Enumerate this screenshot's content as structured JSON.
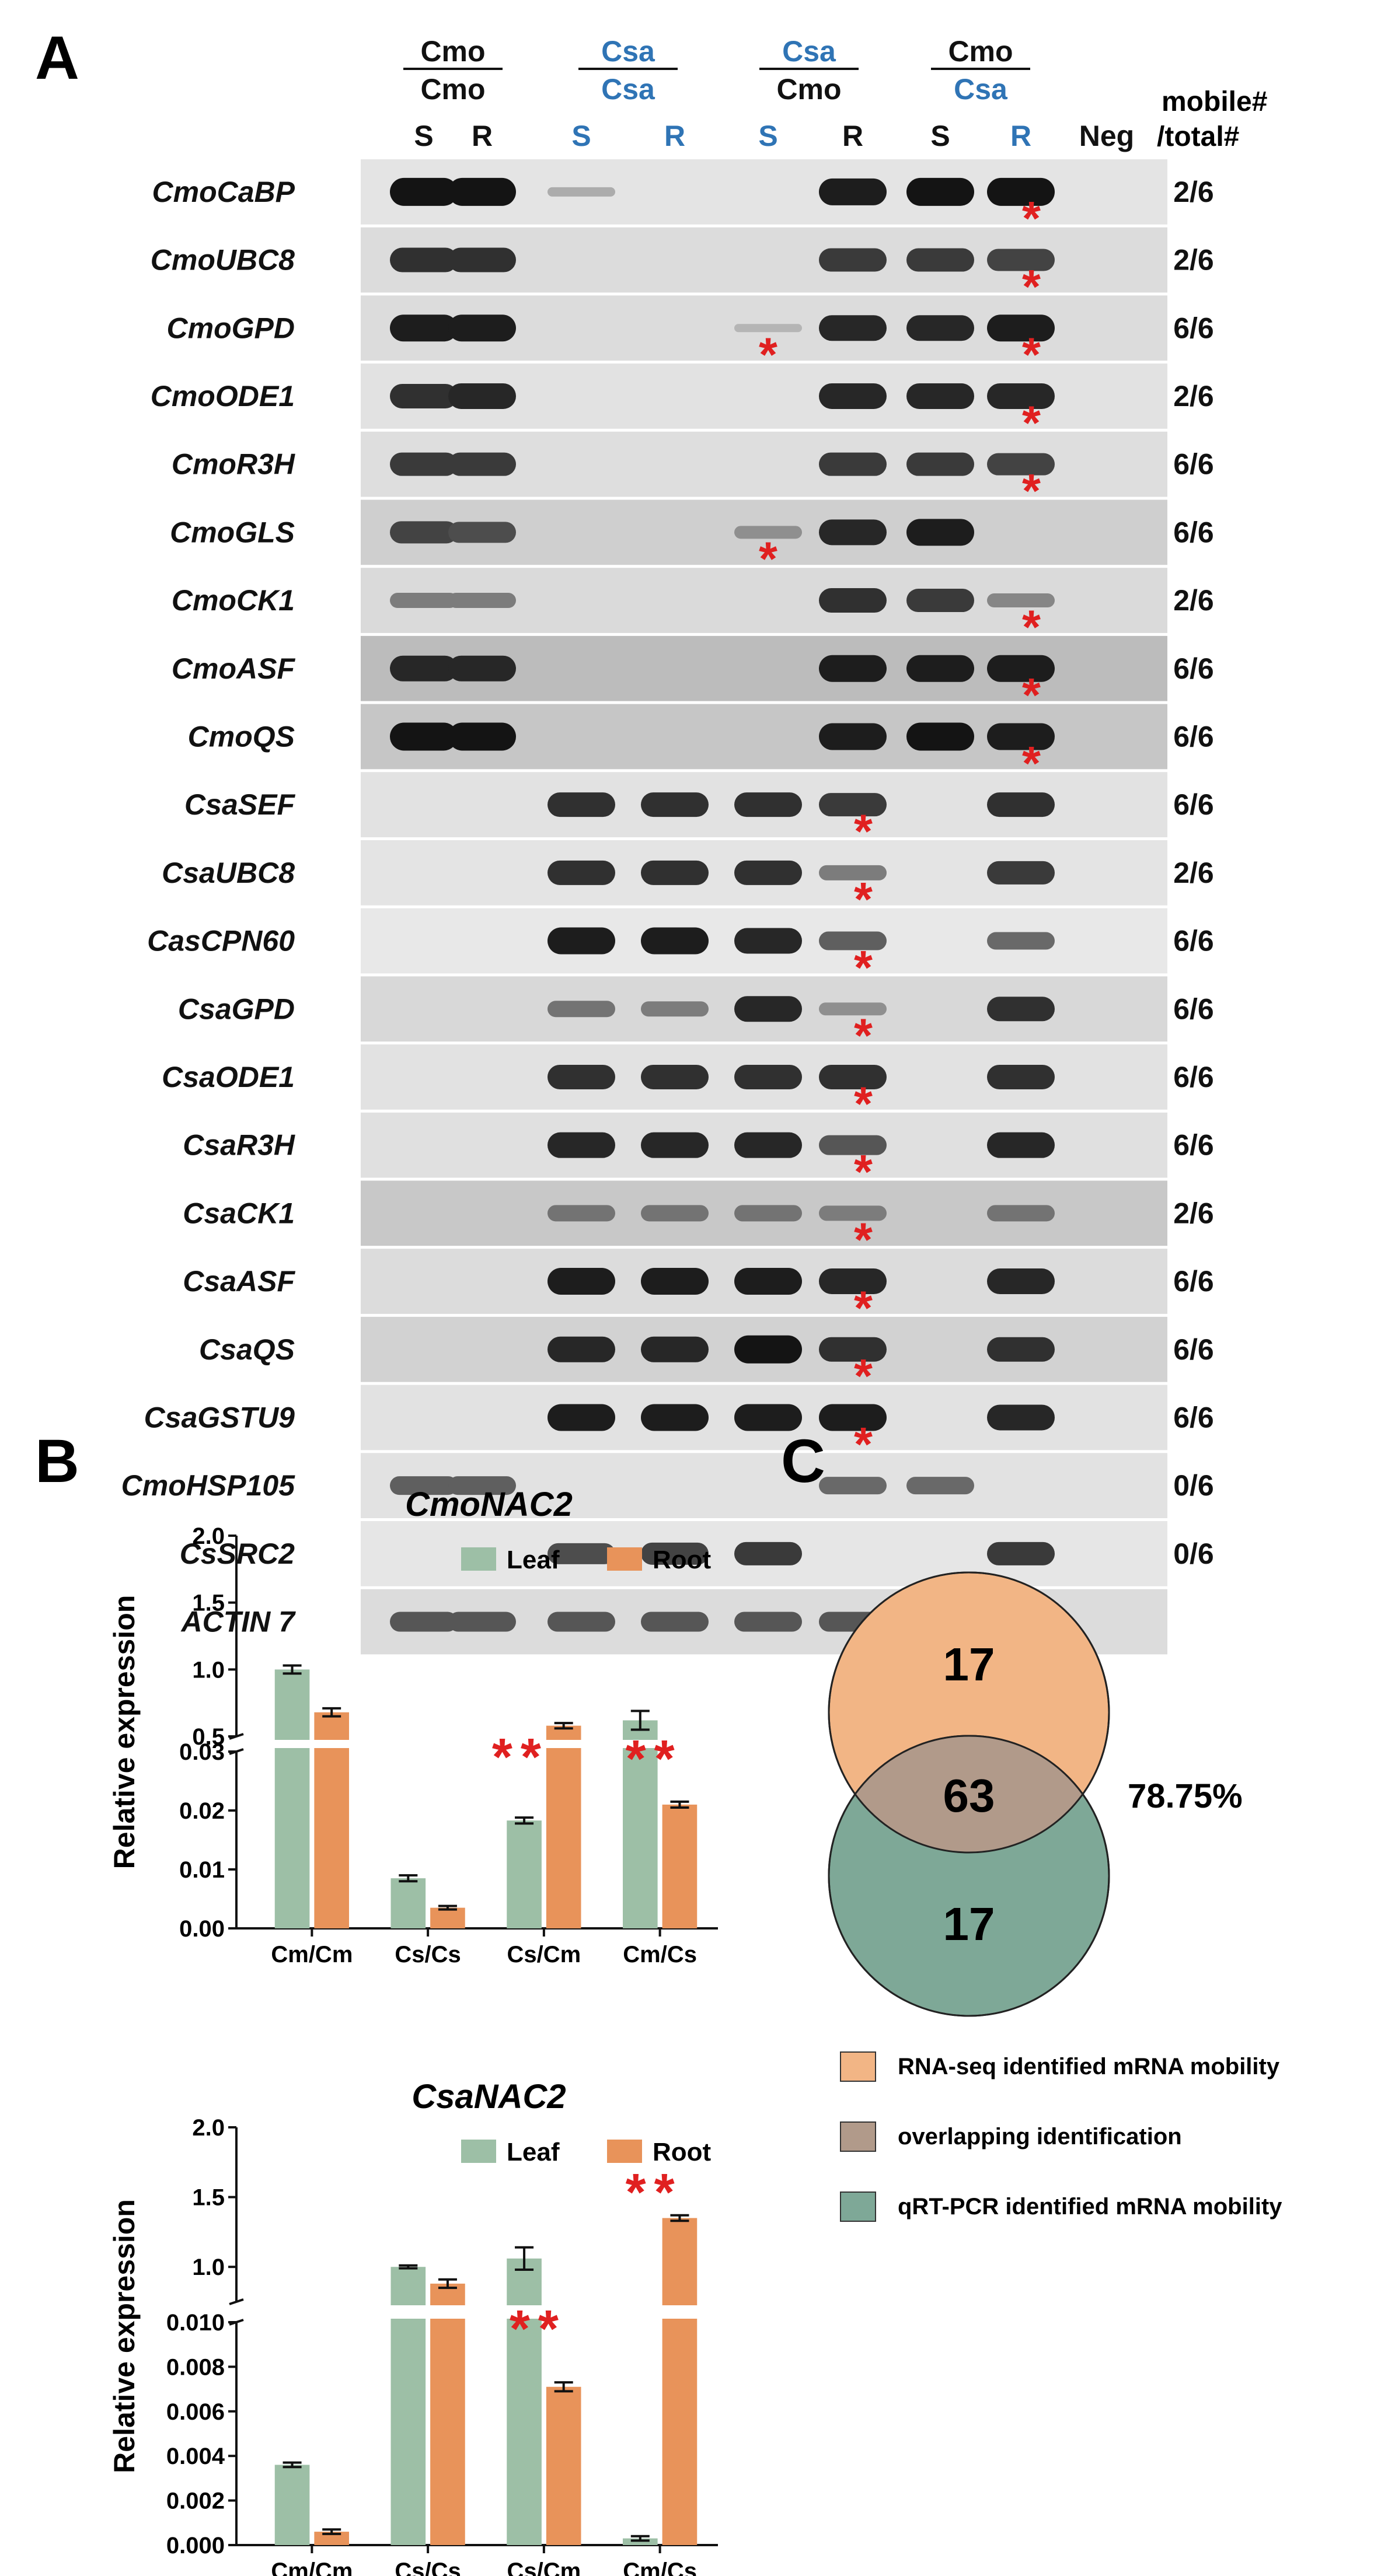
{
  "panel_a": {
    "label": "A",
    "groups": [
      {
        "top": "Cmo",
        "bottom": "Cmo",
        "top_color": "#111111",
        "bottom_color": "#111111"
      },
      {
        "top": "Csa",
        "bottom": "Csa",
        "top_color": "#2f74b5",
        "bottom_color": "#2f74b5"
      },
      {
        "top": "Csa",
        "bottom": "Cmo",
        "top_color": "#2f74b5",
        "bottom_color": "#111111"
      },
      {
        "top": "Cmo",
        "bottom": "Csa",
        "top_color": "#111111",
        "bottom_color": "#2f74b5"
      }
    ],
    "lanes": [
      {
        "label": "S",
        "color": "#111111"
      },
      {
        "label": "R",
        "color": "#111111"
      },
      {
        "label": "S",
        "color": "#2f74b5"
      },
      {
        "label": "R",
        "color": "#2f74b5"
      },
      {
        "label": "S",
        "color": "#2f74b5"
      },
      {
        "label": "R",
        "color": "#111111"
      },
      {
        "label": "S",
        "color": "#111111"
      },
      {
        "label": "R",
        "color": "#2f74b5"
      },
      {
        "label": "Neg",
        "color": "#111111"
      }
    ],
    "mobile_header_1": "mobile#",
    "mobile_header_2": "/total#",
    "genes": [
      {
        "name": "CmoCaBP",
        "ratio": "2/6",
        "bg": "#e4e4e4",
        "bands": [
          0.95,
          0.95,
          0.15,
          0,
          0,
          0.9,
          0.95,
          0.95,
          0
        ],
        "star_lanes": [
          7
        ]
      },
      {
        "name": "CmoUBC8",
        "ratio": "2/6",
        "bg": "#dcdcdc",
        "bands": [
          0.8,
          0.8,
          0,
          0,
          0,
          0.75,
          0.75,
          0.7,
          0
        ],
        "star_lanes": [
          7
        ]
      },
      {
        "name": "CmoGPD",
        "ratio": "6/6",
        "bg": "#dcdcdc",
        "bands": [
          0.9,
          0.9,
          0,
          0,
          0.1,
          0.85,
          0.85,
          0.9,
          0
        ],
        "star_lanes": [
          4,
          7
        ]
      },
      {
        "name": "CmoODE1",
        "ratio": "2/6",
        "bg": "#e2e2e2",
        "bands": [
          0.8,
          0.85,
          0,
          0,
          0,
          0.85,
          0.85,
          0.85,
          0
        ],
        "star_lanes": [
          7
        ]
      },
      {
        "name": "CmoR3H",
        "ratio": "6/6",
        "bg": "#dedede",
        "bands": [
          0.75,
          0.75,
          0,
          0,
          0,
          0.75,
          0.75,
          0.7,
          0
        ],
        "star_lanes": [
          7
        ]
      },
      {
        "name": "CmoGLS",
        "ratio": "6/6",
        "bg": "#cfcfcf",
        "bands": [
          0.7,
          0.65,
          0,
          0,
          0.3,
          0.85,
          0.9,
          0,
          0
        ],
        "star_lanes": [
          4
        ]
      },
      {
        "name": "CmoCK1",
        "ratio": "2/6",
        "bg": "#dadada",
        "bands": [
          0.4,
          0.4,
          0,
          0,
          0,
          0.8,
          0.75,
          0.35,
          0
        ],
        "star_lanes": [
          7
        ]
      },
      {
        "name": "CmoASF",
        "ratio": "6/6",
        "bg": "#bcbcbc",
        "bands": [
          0.85,
          0.85,
          0,
          0,
          0,
          0.9,
          0.9,
          0.9,
          0
        ],
        "star_lanes": [
          7
        ]
      },
      {
        "name": "CmoQS",
        "ratio": "6/6",
        "bg": "#c6c6c6",
        "bands": [
          0.95,
          0.95,
          0,
          0,
          0,
          0.9,
          0.95,
          0.9,
          0
        ],
        "star_lanes": [
          7
        ]
      },
      {
        "name": "CsaSEF",
        "ratio": "6/6",
        "bg": "#e2e2e2",
        "bands": [
          0,
          0,
          0.8,
          0.8,
          0.8,
          0.75,
          0,
          0.8,
          0
        ],
        "star_lanes": [
          5
        ]
      },
      {
        "name": "CsaUBC8",
        "ratio": "2/6",
        "bg": "#e4e4e4",
        "bands": [
          0,
          0,
          0.8,
          0.8,
          0.8,
          0.4,
          0,
          0.75,
          0
        ],
        "star_lanes": [
          5
        ]
      },
      {
        "name": "CasCPN60",
        "ratio": "6/6",
        "bg": "#e8e8e8",
        "bands": [
          0,
          0,
          0.9,
          0.9,
          0.85,
          0.55,
          0,
          0.5,
          0
        ],
        "star_lanes": [
          5
        ]
      },
      {
        "name": "CsaGPD",
        "ratio": "6/6",
        "bg": "#d8d8d8",
        "bands": [
          0,
          0,
          0.45,
          0.4,
          0.85,
          0.3,
          0,
          0.8,
          0
        ],
        "star_lanes": [
          5
        ]
      },
      {
        "name": "CsaODE1",
        "ratio": "6/6",
        "bg": "#e2e2e2",
        "bands": [
          0,
          0,
          0.8,
          0.8,
          0.8,
          0.8,
          0,
          0.8,
          0
        ],
        "star_lanes": [
          5
        ]
      },
      {
        "name": "CsaR3H",
        "ratio": "6/6",
        "bg": "#e0e0e0",
        "bands": [
          0,
          0,
          0.85,
          0.85,
          0.85,
          0.6,
          0,
          0.85,
          0
        ],
        "star_lanes": [
          5
        ]
      },
      {
        "name": "CsaCK1",
        "ratio": "2/6",
        "bg": "#c8c8c8",
        "bands": [
          0,
          0,
          0.45,
          0.45,
          0.45,
          0.4,
          0,
          0.45,
          0
        ],
        "star_lanes": [
          5
        ]
      },
      {
        "name": "CsaASF",
        "ratio": "6/6",
        "bg": "#dcdcdc",
        "bands": [
          0,
          0,
          0.9,
          0.9,
          0.9,
          0.85,
          0,
          0.85,
          0
        ],
        "star_lanes": [
          5
        ]
      },
      {
        "name": "CsaQS",
        "ratio": "6/6",
        "bg": "#d2d2d2",
        "bands": [
          0,
          0,
          0.85,
          0.85,
          0.95,
          0.8,
          0,
          0.8,
          0
        ],
        "star_lanes": [
          5
        ]
      },
      {
        "name": "CsaGSTU9",
        "ratio": "6/6",
        "bg": "#e2e2e2",
        "bands": [
          0,
          0,
          0.9,
          0.9,
          0.9,
          0.9,
          0,
          0.85,
          0
        ],
        "star_lanes": [
          5
        ]
      },
      {
        "name": "CmoHSP105",
        "ratio": "0/6",
        "bg": "#e2e2e2",
        "bands": [
          0.55,
          0.55,
          0,
          0,
          0,
          0.5,
          0.5,
          0,
          0
        ],
        "star_lanes": []
      },
      {
        "name": "CsSRC2",
        "ratio": "0/6",
        "bg": "#e6e6e6",
        "bands": [
          0,
          0,
          0.65,
          0.7,
          0.75,
          0,
          0,
          0.75,
          0
        ],
        "star_lanes": []
      },
      {
        "name": "ACTIN 7",
        "ratio": "",
        "bg": "#dcdcdc",
        "bands": [
          0.6,
          0.6,
          0.6,
          0.6,
          0.6,
          0.6,
          0.55,
          0.6,
          0
        ],
        "star_lanes": []
      }
    ]
  },
  "panel_b": {
    "label": "B",
    "legend_leaf": "Leaf",
    "legend_root": "Root",
    "leaf_color": "#9dbfa6",
    "root_color": "#e8935a",
    "star_color": "#e02020",
    "star_text": "*"
  },
  "panel_c": {
    "label": "C",
    "left_only": "17",
    "overlap": "63",
    "right_only": "17",
    "percent": "78.75%",
    "colors": {
      "rnaseq": "#f2b585",
      "overlap": "#b19a8a",
      "qrt": "#7ea897"
    },
    "legend": [
      {
        "text": "RNA-seq identified mRNA mobility",
        "color": "#f2b585"
      },
      {
        "text": "overlapping identification",
        "color": "#b19a8a"
      },
      {
        "text": "qRT-PCR identified mRNA mobility",
        "color": "#7ea897"
      }
    ]
  },
  "chart_data": [
    {
      "type": "bar",
      "title": "CmoNAC2",
      "xlabel": "",
      "ylabel": "Relative expression",
      "categories": [
        "Cm/Cm",
        "Cs/Cs",
        "Cs/Cm",
        "Cm/Cs"
      ],
      "series": [
        {
          "name": "Leaf",
          "values": [
            1.0,
            0.0085,
            0.0183,
            0.62
          ],
          "errors": [
            0.03,
            0.0005,
            0.0005,
            0.07
          ]
        },
        {
          "name": "Root",
          "values": [
            0.68,
            0.0035,
            0.58,
            0.021
          ],
          "errors": [
            0.03,
            0.0003,
            0.02,
            0.0005
          ]
        }
      ],
      "axis_break": {
        "lower": [
          0,
          0.03
        ],
        "upper": [
          0.5,
          2.0
        ]
      },
      "lower_ticks": [
        "0.00",
        "0.01",
        "0.02",
        "0.03"
      ],
      "upper_ticks": [
        "0.5",
        "1.0",
        "1.5",
        "2.0"
      ],
      "significance": [
        {
          "category": "Cs/Cm",
          "label": "**"
        },
        {
          "category": "Cm/Cs",
          "label": "**"
        }
      ],
      "legend": "top-right"
    },
    {
      "type": "bar",
      "title": "CsaNAC2",
      "xlabel": "",
      "ylabel": "Relative expression",
      "categories": [
        "Cm/Cm",
        "Cs/Cs",
        "Cs/Cm",
        "Cm/Cs"
      ],
      "series": [
        {
          "name": "Leaf",
          "values": [
            0.0036,
            1.0,
            1.06,
            0.0003
          ],
          "errors": [
            0.0001,
            0.01,
            0.08,
            0.0001
          ]
        },
        {
          "name": "Root",
          "values": [
            0.0006,
            0.88,
            0.0071,
            1.35
          ],
          "errors": [
            0.0001,
            0.03,
            0.0002,
            0.02
          ]
        }
      ],
      "axis_break": {
        "lower": [
          0,
          0.01
        ],
        "upper": [
          0.75,
          2.0
        ]
      },
      "lower_ticks": [
        "0.000",
        "0.002",
        "0.004",
        "0.006",
        "0.008",
        "0.010"
      ],
      "upper_ticks": [
        "1.0",
        "1.5",
        "2.0"
      ],
      "significance": [
        {
          "category": "Cs/Cm",
          "label": "**"
        },
        {
          "category": "Cm/Cs",
          "label": "**"
        }
      ],
      "legend": "top-right"
    }
  ]
}
